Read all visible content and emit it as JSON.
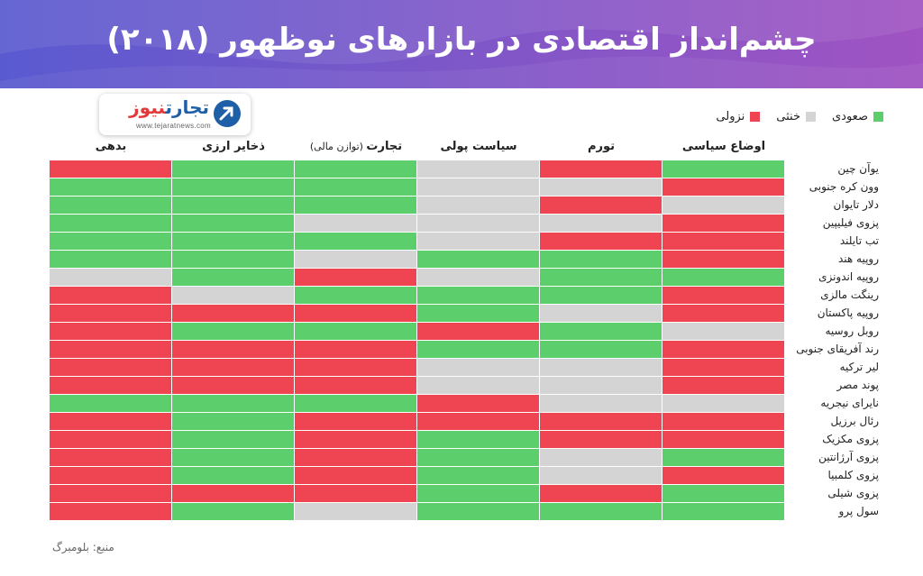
{
  "title": "چشم‌انداز اقتصادی در بازارهای نوظهور (۲۰۱۸)",
  "logo": {
    "name_part1": "تجارت",
    "name_part2": "نیوز",
    "url": "www.tejaratnews.com"
  },
  "source": "منبع: بلومبرگ",
  "colors": {
    "up": "#5ccf6c",
    "neutral": "#d4d4d4",
    "down": "#ef4553",
    "header_left": "#5a5ad0",
    "header_right": "#a053c2"
  },
  "chart_data": {
    "type": "heatmap",
    "legend": [
      {
        "key": "up",
        "label": "صعودی"
      },
      {
        "key": "neutral",
        "label": "خنثی"
      },
      {
        "key": "down",
        "label": "نزولی"
      }
    ],
    "columns": [
      {
        "label": "اوضاع سیاسی",
        "sub": ""
      },
      {
        "label": "تورم",
        "sub": ""
      },
      {
        "label": "سیاست پولی",
        "sub": ""
      },
      {
        "label": "تجارت",
        "sub": "(توازن مالی)"
      },
      {
        "label": "ذخایر ارزی",
        "sub": ""
      },
      {
        "label": "بدهی",
        "sub": ""
      }
    ],
    "rows": [
      {
        "label": "یوآن چین",
        "values": [
          "up",
          "down",
          "neutral",
          "up",
          "up",
          "down"
        ]
      },
      {
        "label": "وون کره جنوبی",
        "values": [
          "down",
          "neutral",
          "neutral",
          "up",
          "up",
          "up"
        ]
      },
      {
        "label": "دلار تایوان",
        "values": [
          "neutral",
          "down",
          "neutral",
          "up",
          "up",
          "up"
        ]
      },
      {
        "label": "پزوی فیلیپین",
        "values": [
          "down",
          "neutral",
          "neutral",
          "neutral",
          "up",
          "up"
        ]
      },
      {
        "label": "تب تایلند",
        "values": [
          "down",
          "down",
          "neutral",
          "up",
          "up",
          "up"
        ]
      },
      {
        "label": "روپیه هند",
        "values": [
          "down",
          "up",
          "up",
          "neutral",
          "up",
          "up"
        ]
      },
      {
        "label": "روپیه اندونزی",
        "values": [
          "up",
          "up",
          "neutral",
          "down",
          "up",
          "neutral"
        ]
      },
      {
        "label": "رینگت مالزی",
        "values": [
          "down",
          "up",
          "up",
          "up",
          "neutral",
          "down"
        ]
      },
      {
        "label": "روپیه پاکستان",
        "values": [
          "down",
          "neutral",
          "up",
          "down",
          "down",
          "down"
        ]
      },
      {
        "label": "روبل روسیه",
        "values": [
          "neutral",
          "up",
          "down",
          "up",
          "up",
          "down"
        ]
      },
      {
        "label": "رند آفریقای جنوبی",
        "values": [
          "down",
          "up",
          "up",
          "down",
          "down",
          "down"
        ]
      },
      {
        "label": "لیر ترکیه",
        "values": [
          "down",
          "neutral",
          "neutral",
          "down",
          "down",
          "down"
        ]
      },
      {
        "label": "پوند مصر",
        "values": [
          "down",
          "neutral",
          "neutral",
          "down",
          "down",
          "down"
        ]
      },
      {
        "label": "نایرای نیجریه",
        "values": [
          "neutral",
          "neutral",
          "down",
          "up",
          "up",
          "up"
        ]
      },
      {
        "label": "رئال برزیل",
        "values": [
          "down",
          "down",
          "down",
          "down",
          "up",
          "down"
        ]
      },
      {
        "label": "پزوی مکزیک",
        "values": [
          "down",
          "down",
          "up",
          "down",
          "up",
          "down"
        ]
      },
      {
        "label": "پزوی آرژانتین",
        "values": [
          "up",
          "neutral",
          "up",
          "down",
          "up",
          "down"
        ]
      },
      {
        "label": "پزوی کلمبیا",
        "values": [
          "down",
          "neutral",
          "up",
          "down",
          "up",
          "down"
        ]
      },
      {
        "label": "پزوی شیلی",
        "values": [
          "up",
          "down",
          "up",
          "down",
          "down",
          "down"
        ]
      },
      {
        "label": "سول پرو",
        "values": [
          "up",
          "up",
          "up",
          "neutral",
          "up",
          "down"
        ]
      }
    ]
  }
}
